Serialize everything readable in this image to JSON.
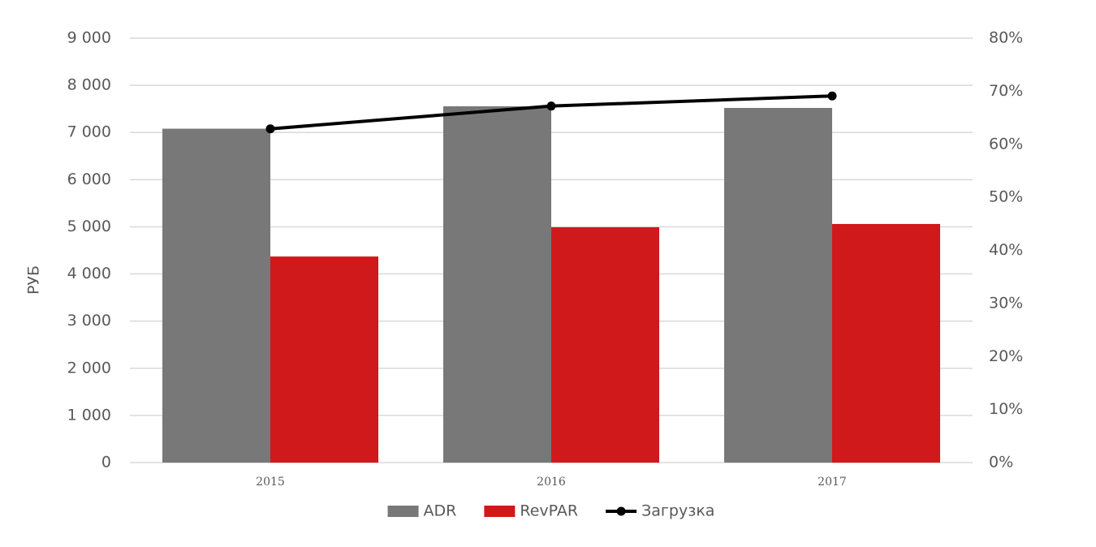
{
  "chart_data": {
    "type": "bar",
    "categories": [
      "2015",
      "2016",
      "2017"
    ],
    "series": [
      {
        "name": "ADR",
        "color": "#787878",
        "values": [
          7080,
          7555,
          7520
        ]
      },
      {
        "name": "RevPAR",
        "color": "#d0191b",
        "values": [
          4370,
          4990,
          5060
        ]
      },
      {
        "name": "Загрузка",
        "color": "#000000",
        "type": "line",
        "axis": "y2",
        "values": [
          62.9,
          67.2,
          69.1
        ]
      }
    ],
    "ylabel": "РУБ",
    "ylim": [
      0,
      9000
    ],
    "yticks": [
      0,
      {
        "value": 1000,
        "label": "1 000"
      },
      {
        "value": 2000,
        "label": "2 000"
      },
      {
        "value": 3000,
        "label": "3 000"
      },
      {
        "value": 4000,
        "label": "4 000"
      },
      {
        "value": 5000,
        "label": "5 000"
      },
      {
        "value": 6000,
        "label": "6 000"
      },
      {
        "value": 7000,
        "label": "7 000"
      },
      {
        "value": 8000,
        "label": "8 000"
      },
      {
        "value": 9000,
        "label": "9 000"
      }
    ],
    "y2lim": [
      0,
      80
    ],
    "y2ticks": [
      {
        "value": 0,
        "label": "0%"
      },
      {
        "value": 10,
        "label": "10%"
      },
      {
        "value": 20,
        "label": "20%"
      },
      {
        "value": 30,
        "label": "30%"
      },
      {
        "value": 40,
        "label": "40%"
      },
      {
        "value": 50,
        "label": "50%"
      },
      {
        "value": 60,
        "label": "60%"
      },
      {
        "value": 70,
        "label": "70%"
      },
      {
        "value": 80,
        "label": "80%"
      }
    ],
    "grid": true,
    "legend": "bottom"
  }
}
